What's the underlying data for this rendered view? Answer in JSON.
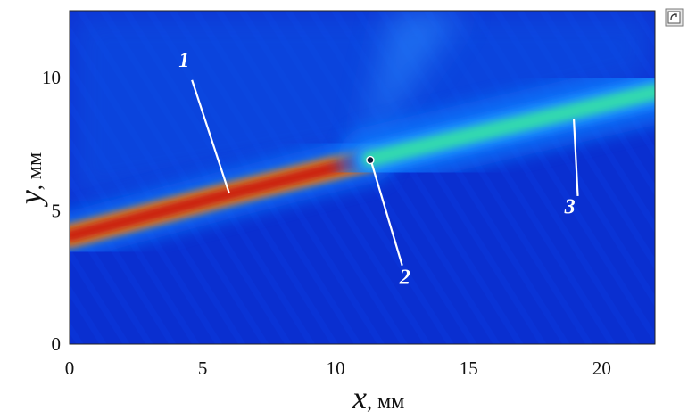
{
  "chart_data": {
    "type": "heatmap",
    "title": "",
    "xlabel": {
      "symbol": "x",
      "unit": ", мм"
    },
    "ylabel": {
      "symbol": "y",
      "unit": ", мм"
    },
    "xlim": [
      0,
      22
    ],
    "ylim": [
      0,
      12.5
    ],
    "xticks": [
      "0",
      "5",
      "10",
      "15",
      "20"
    ],
    "yticks": [
      "0",
      "5",
      "10"
    ],
    "colormap": [
      "#00008f",
      "#0000ff",
      "#0080ff",
      "#00ffff",
      "#80ff80",
      "#ffff00",
      "#ff8000",
      "#ff0000",
      "#800000"
    ],
    "background_color": "#0a2fd0",
    "bands": [
      {
        "id": "beam-main",
        "points": [
          [
            0,
            4.05
          ],
          [
            5.9,
            5.6
          ],
          [
            11.3,
            6.95
          ]
        ],
        "width_mm": 0.45,
        "color": "#cc1a0a",
        "halo": "#f08a10"
      },
      {
        "id": "beam-continuation",
        "points": [
          [
            11.3,
            6.95
          ],
          [
            16,
            8.05
          ],
          [
            22,
            9.45
          ]
        ],
        "width_mm": 0.6,
        "color": "#30d8b0",
        "halo": "#1e90ff"
      }
    ],
    "marker": {
      "x": 11.3,
      "y": 6.9
    },
    "annotations": [
      {
        "label": "1",
        "text_at": [
          4.3,
          10.4
        ],
        "arrow_from": [
          4.6,
          9.9
        ],
        "arrow_to": [
          6.0,
          5.65
        ]
      },
      {
        "label": "2",
        "text_at": [
          12.6,
          2.25
        ],
        "arrow_from": [
          12.5,
          2.95
        ],
        "arrow_to": [
          11.35,
          6.8
        ]
      },
      {
        "label": "3",
        "text_at": [
          18.8,
          4.9
        ],
        "arrow_from": [
          19.1,
          5.55
        ],
        "arrow_to": [
          18.95,
          8.45
        ]
      }
    ]
  },
  "icons": {
    "corner": "window-restore-icon"
  }
}
